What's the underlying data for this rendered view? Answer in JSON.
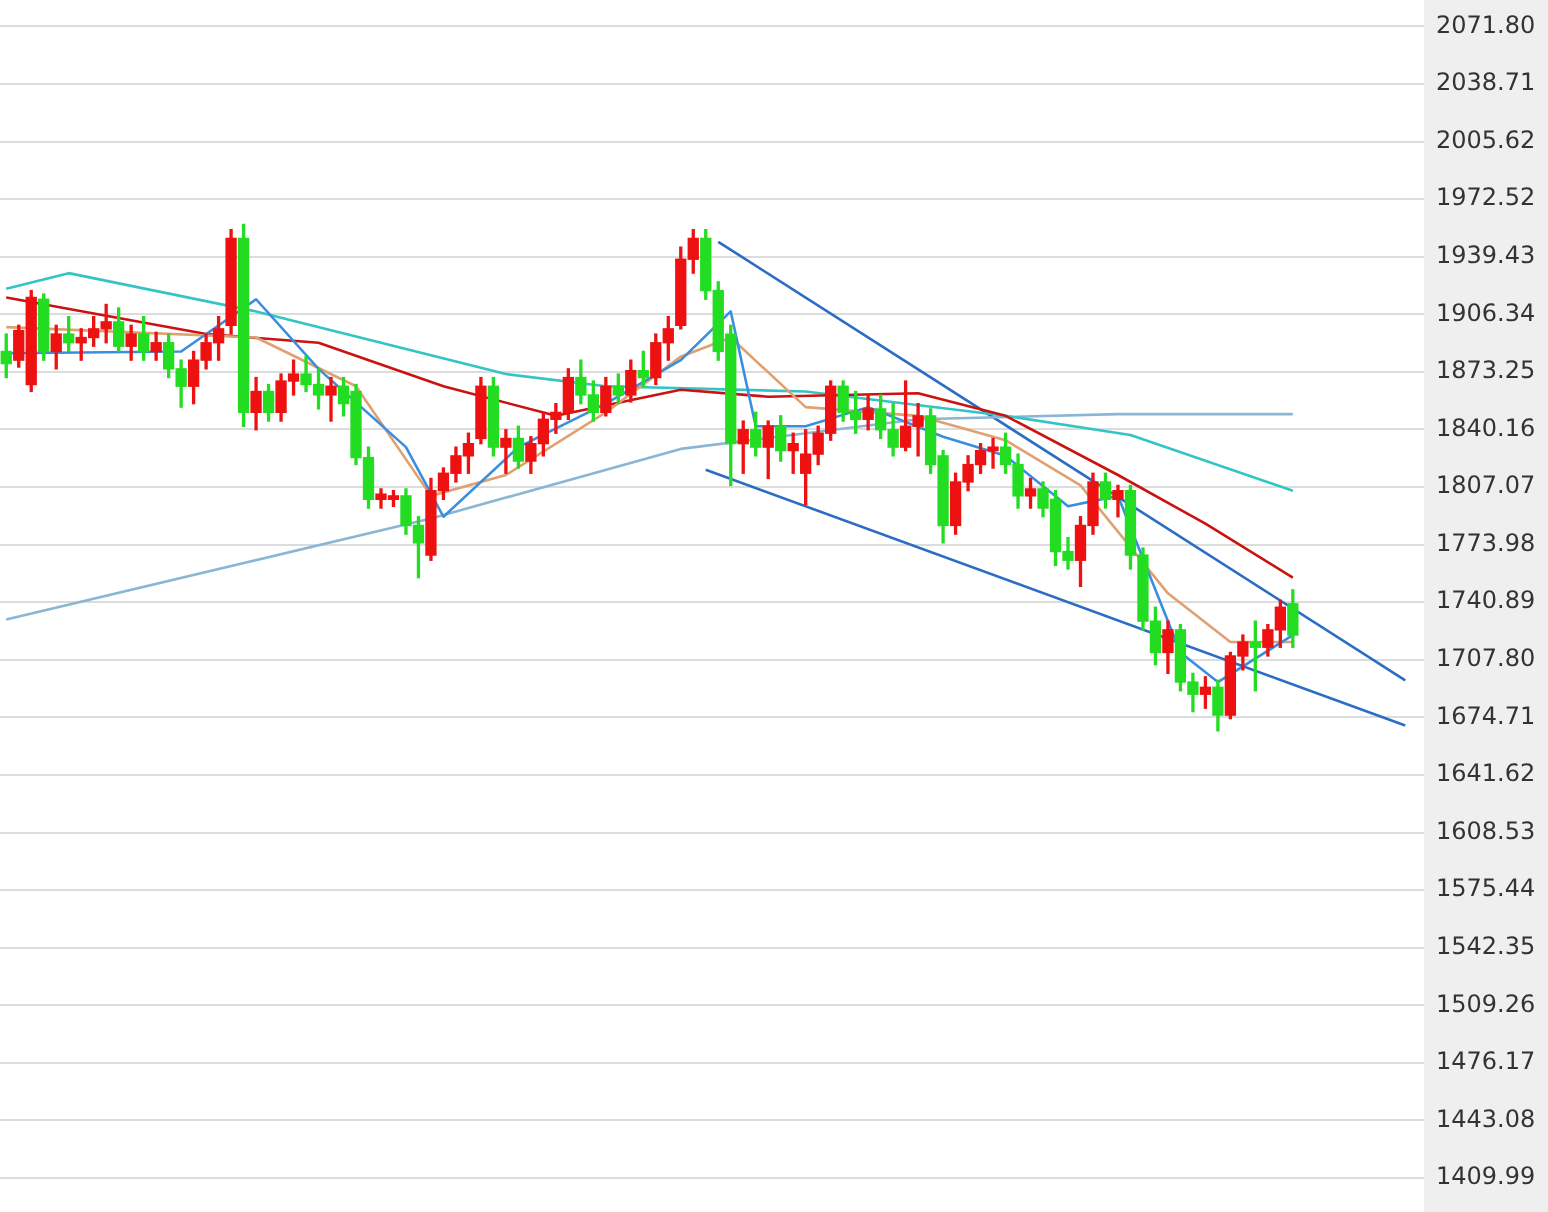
{
  "chart_data": {
    "type": "candlestick",
    "categories": [
      null,
      null,
      null,
      null,
      null,
      null,
      null,
      null,
      null,
      null,
      null,
      null,
      null,
      null,
      null,
      null,
      null,
      null,
      null,
      null,
      null,
      null,
      null,
      null,
      null,
      null,
      null,
      null,
      null,
      null,
      null,
      null,
      null,
      null,
      null,
      null,
      null,
      null,
      null,
      null,
      null,
      null,
      null,
      null,
      null,
      null,
      null,
      null,
      null,
      null,
      null,
      null,
      null,
      null,
      null,
      null,
      null,
      null,
      null,
      null,
      null,
      null,
      null,
      null,
      null,
      null,
      null,
      null,
      null,
      null,
      null,
      null,
      null,
      null,
      null,
      null,
      null,
      null,
      null,
      null,
      null,
      null,
      null,
      null,
      null,
      null,
      null,
      null,
      null,
      null,
      null,
      null,
      null,
      null,
      null,
      null,
      null,
      null,
      null,
      null,
      null,
      null,
      null,
      null,
      null,
      null,
      null,
      null,
      null,
      null,
      null,
      null,
      null,
      null
    ],
    "ohlc": [
      [
        1885,
        1895,
        1870,
        1878
      ],
      [
        1880,
        1900,
        1876,
        1897
      ],
      [
        1866,
        1920,
        1862,
        1916
      ],
      [
        1915,
        1918,
        1880,
        1885
      ],
      [
        1885,
        1900,
        1875,
        1895
      ],
      [
        1895,
        1905,
        1885,
        1890
      ],
      [
        1890,
        1898,
        1880,
        1893
      ],
      [
        1893,
        1905,
        1888,
        1898
      ],
      [
        1898,
        1912,
        1890,
        1902
      ],
      [
        1902,
        1910,
        1885,
        1888
      ],
      [
        1888,
        1900,
        1880,
        1895
      ],
      [
        1895,
        1905,
        1880,
        1885
      ],
      [
        1885,
        1896,
        1880,
        1890
      ],
      [
        1890,
        1895,
        1870,
        1875
      ],
      [
        1875,
        1880,
        1853,
        1865
      ],
      [
        1865,
        1885,
        1855,
        1880
      ],
      [
        1880,
        1895,
        1875,
        1890
      ],
      [
        1890,
        1905,
        1880,
        1898
      ],
      [
        1900,
        1955,
        1895,
        1950
      ],
      [
        1950,
        1958,
        1842,
        1850
      ],
      [
        1850,
        1870,
        1840,
        1862
      ],
      [
        1862,
        1866,
        1845,
        1850
      ],
      [
        1850,
        1872,
        1845,
        1868
      ],
      [
        1868,
        1880,
        1860,
        1872
      ],
      [
        1872,
        1882,
        1862,
        1866
      ],
      [
        1866,
        1875,
        1852,
        1860
      ],
      [
        1860,
        1870,
        1845,
        1865
      ],
      [
        1865,
        1870,
        1848,
        1855
      ],
      [
        1862,
        1866,
        1820,
        1824
      ],
      [
        1824,
        1830,
        1795,
        1800
      ],
      [
        1800,
        1806,
        1795,
        1803
      ],
      [
        1800,
        1805,
        1796,
        1802
      ],
      [
        1802,
        1806,
        1780,
        1785
      ],
      [
        1785,
        1790,
        1755,
        1775
      ],
      [
        1768,
        1812,
        1765,
        1805
      ],
      [
        1805,
        1818,
        1800,
        1815
      ],
      [
        1815,
        1830,
        1810,
        1825
      ],
      [
        1825,
        1838,
        1815,
        1832
      ],
      [
        1835,
        1870,
        1832,
        1865
      ],
      [
        1865,
        1870,
        1825,
        1830
      ],
      [
        1830,
        1840,
        1815,
        1835
      ],
      [
        1835,
        1842,
        1818,
        1822
      ],
      [
        1822,
        1836,
        1815,
        1832
      ],
      [
        1832,
        1850,
        1825,
        1846
      ],
      [
        1846,
        1855,
        1838,
        1850
      ],
      [
        1850,
        1875,
        1846,
        1870
      ],
      [
        1870,
        1880,
        1855,
        1860
      ],
      [
        1860,
        1868,
        1845,
        1850
      ],
      [
        1850,
        1870,
        1848,
        1865
      ],
      [
        1865,
        1872,
        1855,
        1860
      ],
      [
        1860,
        1880,
        1856,
        1874
      ],
      [
        1874,
        1885,
        1865,
        1870
      ],
      [
        1870,
        1895,
        1866,
        1890
      ],
      [
        1890,
        1905,
        1880,
        1898
      ],
      [
        1900,
        1945,
        1898,
        1938
      ],
      [
        1938,
        1955,
        1930,
        1950
      ],
      [
        1950,
        1955,
        1915,
        1920
      ],
      [
        1920,
        1925,
        1880,
        1885
      ],
      [
        1895,
        1900,
        1808,
        1832
      ],
      [
        1832,
        1845,
        1815,
        1840
      ],
      [
        1840,
        1850,
        1825,
        1830
      ],
      [
        1830,
        1845,
        1812,
        1842
      ],
      [
        1842,
        1848,
        1822,
        1828
      ],
      [
        1828,
        1838,
        1815,
        1832
      ],
      [
        1815,
        1840,
        1797,
        1826
      ],
      [
        1826,
        1842,
        1820,
        1838
      ],
      [
        1838,
        1868,
        1834,
        1865
      ],
      [
        1865,
        1868,
        1845,
        1850
      ],
      [
        1850,
        1862,
        1838,
        1846
      ],
      [
        1846,
        1860,
        1840,
        1852
      ],
      [
        1852,
        1860,
        1835,
        1840
      ],
      [
        1840,
        1855,
        1825,
        1830
      ],
      [
        1830,
        1868,
        1828,
        1842
      ],
      [
        1842,
        1855,
        1825,
        1848
      ],
      [
        1848,
        1852,
        1815,
        1820
      ],
      [
        1825,
        1828,
        1775,
        1785
      ],
      [
        1785,
        1815,
        1780,
        1810
      ],
      [
        1810,
        1825,
        1805,
        1820
      ],
      [
        1820,
        1832,
        1815,
        1828
      ],
      [
        1828,
        1835,
        1818,
        1830
      ],
      [
        1830,
        1838,
        1815,
        1820
      ],
      [
        1820,
        1826,
        1795,
        1802
      ],
      [
        1802,
        1812,
        1795,
        1806
      ],
      [
        1806,
        1810,
        1790,
        1795
      ],
      [
        1800,
        1805,
        1762,
        1770
      ],
      [
        1770,
        1778,
        1760,
        1765
      ],
      [
        1765,
        1790,
        1750,
        1785
      ],
      [
        1785,
        1815,
        1780,
        1810
      ],
      [
        1810,
        1815,
        1795,
        1800
      ],
      [
        1800,
        1808,
        1790,
        1805
      ],
      [
        1805,
        1808,
        1760,
        1768
      ],
      [
        1768,
        1772,
        1725,
        1730
      ],
      [
        1730,
        1738,
        1705,
        1712
      ],
      [
        1712,
        1730,
        1700,
        1725
      ],
      [
        1725,
        1728,
        1690,
        1695
      ],
      [
        1695,
        1700,
        1678,
        1688
      ],
      [
        1688,
        1698,
        1680,
        1692
      ],
      [
        1692,
        1696,
        1667,
        1676
      ],
      [
        1676,
        1712,
        1674,
        1710
      ],
      [
        1710,
        1722,
        1702,
        1718
      ],
      [
        1718,
        1730,
        1690,
        1715
      ],
      [
        1715,
        1728,
        1710,
        1725
      ],
      [
        1725,
        1742,
        1715,
        1738
      ],
      [
        1740,
        1748,
        1715,
        1722
      ],
      null,
      null,
      null,
      null,
      null,
      null,
      null,
      null,
      null,
      null
    ],
    "colors": [
      "#22dd22",
      "#ee1111",
      "#ee1111",
      "#22dd22",
      "#ee1111",
      "#22dd22",
      "#ee1111",
      "#ee1111",
      "#ee1111",
      "#22dd22",
      "#ee1111",
      "#22dd22",
      "#ee1111",
      "#22dd22",
      "#22dd22",
      "#ee1111",
      "#ee1111",
      "#ee1111",
      "#ee1111",
      "#22dd22",
      "#ee1111",
      "#22dd22",
      "#ee1111",
      "#ee1111",
      "#22dd22",
      "#22dd22",
      "#ee1111",
      "#22dd22",
      "#22dd22",
      "#22dd22",
      "#ee1111",
      "#ee1111",
      "#22dd22",
      "#22dd22",
      "#ee1111",
      "#ee1111",
      "#ee1111",
      "#ee1111",
      "#ee1111",
      "#22dd22",
      "#ee1111",
      "#22dd22",
      "#ee1111",
      "#ee1111",
      "#ee1111",
      "#ee1111",
      "#22dd22",
      "#22dd22",
      "#ee1111",
      "#22dd22",
      "#ee1111",
      "#22dd22",
      "#ee1111",
      "#ee1111",
      "#ee1111",
      "#ee1111",
      "#22dd22",
      "#22dd22",
      "#22dd22",
      "#ee1111",
      "#22dd22",
      "#ee1111",
      "#22dd22",
      "#ee1111",
      "#ee1111",
      "#ee1111",
      "#ee1111",
      "#22dd22",
      "#22dd22",
      "#ee1111",
      "#22dd22",
      "#22dd22",
      "#ee1111",
      "#ee1111",
      "#22dd22",
      "#22dd22",
      "#ee1111",
      "#ee1111",
      "#ee1111",
      "#ee1111",
      "#22dd22",
      "#22dd22",
      "#ee1111",
      "#22dd22",
      "#22dd22",
      "#22dd22",
      "#ee1111",
      "#ee1111",
      "#22dd22",
      "#ee1111",
      "#22dd22",
      "#22dd22",
      "#22dd22",
      "#ee1111",
      "#22dd22",
      "#22dd22",
      "#ee1111",
      "#22dd22",
      "#ee1111",
      "#ee1111",
      "#22dd22",
      "#ee1111",
      "#ee1111",
      "#22dd22",
      null,
      null,
      null,
      null,
      null,
      null,
      null,
      null,
      null,
      null
    ],
    "series": [
      {
        "type": "line",
        "color": "#3a8ee0",
        "values": [
          1884,
          null,
          null,
          null,
          null,
          null,
          null,
          null,
          null,
          null,
          null,
          null,
          null,
          null,
          1885,
          null,
          null,
          null,
          null,
          null,
          1915,
          null,
          null,
          null,
          null,
          1875,
          null,
          null,
          null,
          null,
          null,
          null,
          1830,
          null,
          null,
          1790,
          null,
          null,
          null,
          null,
          null,
          1830,
          null,
          null,
          null,
          null,
          null,
          null,
          1855,
          null,
          null,
          null,
          null,
          null,
          1880,
          null,
          null,
          null,
          1908,
          null,
          1842,
          null,
          null,
          null,
          1842,
          null,
          null,
          null,
          null,
          1853,
          null,
          null,
          null,
          null,
          null,
          1836,
          null,
          null,
          null,
          null,
          1825,
          null,
          null,
          null,
          null,
          1796,
          null,
          null,
          null,
          1802,
          null,
          null,
          null,
          null,
          1712,
          null,
          null,
          1695,
          null,
          null,
          null,
          null,
          null,
          1722,
          null,
          null,
          null,
          null,
          null,
          null,
          null,
          null,
          null,
          null
        ]
      },
      {
        "type": "line",
        "color": "#e0a070",
        "values": [
          1899,
          null,
          null,
          null,
          null,
          null,
          null,
          null,
          null,
          null,
          null,
          null,
          null,
          null,
          null,
          null,
          null,
          null,
          null,
          null,
          1893,
          null,
          null,
          null,
          null,
          null,
          null,
          null,
          1865,
          null,
          null,
          null,
          null,
          null,
          1802,
          null,
          null,
          null,
          null,
          null,
          1814,
          null,
          null,
          null,
          null,
          null,
          null,
          null,
          1850,
          null,
          null,
          null,
          null,
          null,
          1882,
          null,
          null,
          null,
          1893,
          null,
          null,
          null,
          null,
          null,
          1853,
          null,
          null,
          null,
          null,
          null,
          null,
          null,
          null,
          1848,
          null,
          null,
          null,
          null,
          null,
          null,
          1834,
          null,
          null,
          null,
          null,
          null,
          1808,
          null,
          null,
          null,
          null,
          null,
          null,
          1746,
          null,
          null,
          null,
          null,
          1718,
          null,
          null,
          null,
          null,
          1718,
          null,
          null,
          null,
          null,
          null,
          null,
          null,
          null,
          null,
          null
        ]
      },
      {
        "type": "line",
        "color": "#cc1111",
        "values": [
          1916,
          null,
          null,
          null,
          null,
          null,
          null,
          null,
          null,
          null,
          null,
          null,
          null,
          null,
          null,
          null,
          1895,
          null,
          null,
          null,
          null,
          null,
          null,
          null,
          null,
          1890,
          null,
          null,
          null,
          null,
          null,
          null,
          null,
          null,
          null,
          1865,
          null,
          null,
          null,
          null,
          null,
          null,
          null,
          null,
          1848,
          null,
          null,
          null,
          null,
          null,
          null,
          null,
          null,
          null,
          1863,
          null,
          null,
          null,
          null,
          null,
          null,
          1859,
          null,
          null,
          null,
          null,
          null,
          null,
          null,
          null,
          null,
          null,
          null,
          1861,
          null,
          null,
          null,
          null,
          null,
          null,
          1848,
          null,
          null,
          null,
          null,
          null,
          null,
          null,
          null,
          1814,
          null,
          null,
          null,
          null,
          null,
          null,
          1786,
          null,
          null,
          null,
          null,
          null,
          null,
          1755,
          null,
          null,
          null,
          null,
          null,
          null,
          null,
          null,
          null,
          null
        ]
      },
      {
        "type": "line",
        "color": "#33c4c4",
        "values": [
          1921,
          null,
          null,
          null,
          null,
          1930,
          null,
          null,
          null,
          null,
          null,
          null,
          null,
          null,
          null,
          null,
          null,
          null,
          null,
          null,
          1908,
          null,
          null,
          null,
          null,
          null,
          null,
          null,
          null,
          null,
          null,
          null,
          null,
          null,
          null,
          null,
          null,
          null,
          null,
          null,
          1872,
          null,
          null,
          null,
          null,
          null,
          null,
          null,
          1865,
          null,
          null,
          null,
          null,
          null,
          null,
          null,
          null,
          null,
          null,
          null,
          null,
          null,
          null,
          null,
          1862,
          null,
          null,
          null,
          null,
          null,
          null,
          null,
          null,
          null,
          null,
          null,
          null,
          null,
          null,
          null,
          1848,
          null,
          null,
          null,
          null,
          null,
          null,
          null,
          null,
          null,
          1837,
          null,
          null,
          null,
          null,
          null,
          null,
          null,
          null,
          null,
          null,
          null,
          null,
          1805,
          null,
          null,
          null,
          null,
          null,
          null,
          null,
          null,
          null,
          null
        ]
      },
      {
        "type": "line",
        "color": "#8ab6d4",
        "values": [
          1731,
          null,
          null,
          null,
          null,
          null,
          null,
          null,
          null,
          null,
          null,
          null,
          null,
          null,
          null,
          null,
          null,
          null,
          null,
          null,
          null,
          null,
          null,
          null,
          null,
          null,
          null,
          null,
          null,
          null,
          null,
          null,
          null,
          null,
          1789,
          null,
          null,
          null,
          null,
          null,
          null,
          null,
          null,
          null,
          null,
          null,
          null,
          null,
          null,
          null,
          null,
          null,
          null,
          null,
          1829,
          null,
          null,
          null,
          null,
          null,
          null,
          null,
          null,
          null,
          null,
          null,
          null,
          null,
          null,
          null,
          null,
          null,
          null,
          1846,
          null,
          null,
          null,
          null,
          null,
          null,
          null,
          null,
          null,
          null,
          null,
          null,
          null,
          null,
          null,
          1849,
          null,
          null,
          null,
          null,
          null,
          null,
          null,
          null,
          null,
          null,
          null,
          null,
          null,
          1849,
          null,
          null,
          null,
          null,
          null,
          null,
          null,
          null,
          null,
          null
        ]
      },
      {
        "type": "line",
        "color": "#2b6cc4",
        "values": [
          null,
          null,
          null,
          null,
          null,
          null,
          null,
          null,
          null,
          null,
          null,
          null,
          null,
          null,
          null,
          null,
          null,
          null,
          null,
          null,
          null,
          null,
          null,
          null,
          null,
          null,
          null,
          null,
          null,
          null,
          null,
          null,
          null,
          null,
          null,
          null,
          null,
          null,
          null,
          null,
          null,
          null,
          null,
          null,
          null,
          null,
          null,
          null,
          null,
          null,
          null,
          null,
          null,
          null,
          null,
          null,
          null,
          1948,
          null,
          null,
          null,
          null,
          null,
          null,
          null,
          null,
          null,
          null,
          null,
          null,
          null,
          null,
          null,
          null,
          null,
          null,
          null,
          null,
          null,
          null,
          null,
          null,
          null,
          null,
          null,
          null,
          null,
          null,
          null,
          null,
          null,
          null,
          null,
          null,
          null,
          null,
          null,
          null,
          null,
          null,
          null,
          null,
          null,
          null,
          null,
          null,
          null,
          null,
          null,
          null,
          null,
          null,
          1696,
          null
        ]
      },
      {
        "type": "line",
        "color": "#2b6cc4",
        "values": [
          null,
          null,
          null,
          null,
          null,
          null,
          null,
          null,
          null,
          null,
          null,
          null,
          null,
          null,
          null,
          null,
          null,
          null,
          null,
          null,
          null,
          null,
          null,
          null,
          null,
          null,
          null,
          null,
          null,
          null,
          null,
          null,
          null,
          null,
          null,
          null,
          null,
          null,
          null,
          null,
          null,
          null,
          null,
          null,
          null,
          null,
          null,
          null,
          null,
          null,
          null,
          null,
          null,
          null,
          null,
          null,
          1817,
          null,
          null,
          null,
          null,
          null,
          null,
          null,
          null,
          null,
          null,
          null,
          null,
          null,
          null,
          null,
          null,
          null,
          null,
          null,
          null,
          null,
          null,
          null,
          null,
          null,
          null,
          null,
          null,
          null,
          null,
          null,
          null,
          null,
          null,
          null,
          null,
          null,
          null,
          null,
          null,
          null,
          null,
          null,
          null,
          null,
          null,
          null,
          null,
          null,
          null,
          null,
          null,
          null,
          null,
          null,
          1670,
          null
        ]
      }
    ],
    "ylim": [
      1409.99,
      2071.8
    ],
    "yticks": [
      {
        "value": 2071.8,
        "label": "2071.80"
      },
      2038.71,
      2005.62,
      1972.52,
      1939.43,
      1906.34,
      1873.25,
      1840.16,
      1807.07,
      1773.98,
      1740.89,
      {
        "value": 1707.8,
        "label": "1707.80"
      },
      1674.71,
      1641.62,
      1608.53,
      1575.44,
      1542.35,
      1509.26,
      1476.17,
      1443.08,
      1409.99
    ],
    "grid": "y",
    "legend": false,
    "tick_labels": "y",
    "marker": "none",
    "line_style": "solid"
  }
}
